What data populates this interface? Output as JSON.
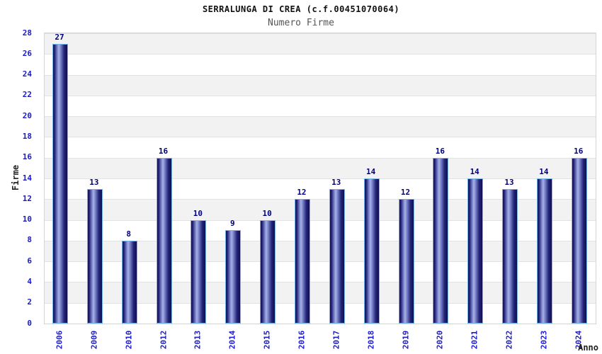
{
  "header": {
    "title": "SERRALUNGA DI CREA (c.f.00451070064)",
    "subtitle": "Numero Firme"
  },
  "chart_data": {
    "type": "bar",
    "title": "SERRALUNGA DI CREA (c.f.00451070064)",
    "subtitle": "Numero Firme",
    "xlabel": "Anno",
    "ylabel": "Firme",
    "categories": [
      "2006",
      "2009",
      "2010",
      "2012",
      "2013",
      "2014",
      "2015",
      "2016",
      "2017",
      "2018",
      "2019",
      "2020",
      "2021",
      "2022",
      "2023",
      "2024"
    ],
    "values": [
      27,
      13,
      8,
      16,
      10,
      9,
      10,
      12,
      13,
      14,
      12,
      16,
      14,
      13,
      14,
      16
    ],
    "ylim": [
      0,
      28
    ],
    "ytick_step": 2,
    "yticks": [
      0,
      2,
      4,
      6,
      8,
      10,
      12,
      14,
      16,
      18,
      20,
      22,
      24,
      26,
      28
    ],
    "grid": "horizontal alternating bands, white and light gray, every 2 units",
    "legend": "none",
    "bar_value_labels_shown": true,
    "colors": {
      "bar_dark": "#10104e",
      "bar_mid": "#232378",
      "bar_highlight": "#aab2e4",
      "bar_outline": "#74b2e8",
      "tick_label": "#1a1acd",
      "value_label": "#00007d",
      "band_gray": "#f2f2f2",
      "band_white": "#ffffff",
      "gridline": "#e2e2e2",
      "plot_border": "#d4d4d4",
      "title_color": "#111111",
      "subtitle_color": "#555555",
      "axis_title_color": "#222222"
    }
  }
}
